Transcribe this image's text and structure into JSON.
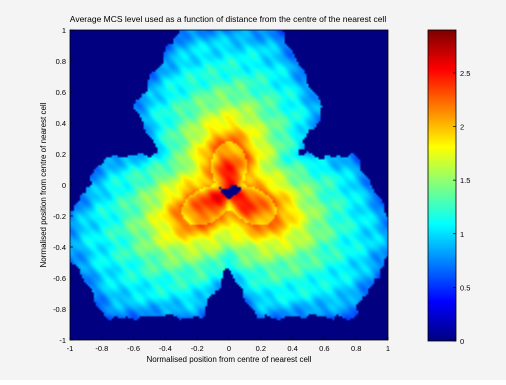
{
  "chart_data": {
    "type": "heatmap",
    "title": "Average MCS level used as a function of distance from the centre of the nearest cell",
    "xlabel": "Normalised position from centre of nearest cell",
    "ylabel": "Normalised position from centre of nearest cell",
    "xlim": [
      -1,
      1
    ],
    "ylim": [
      -1,
      1
    ],
    "x_ticks": [
      "-1",
      "-0.8",
      "-0.6",
      "-0.4",
      "-0.2",
      "0",
      "0.2",
      "0.4",
      "0.6",
      "0.8",
      "1"
    ],
    "y_ticks": [
      "1",
      "0.8",
      "0.6",
      "0.4",
      "0.2",
      "0",
      "-0.2",
      "-0.4",
      "-0.6",
      "-0.8",
      "-1"
    ],
    "colorbar": {
      "range": [
        0,
        2.9
      ],
      "ticks": [
        "2.5",
        "2",
        "1.5",
        "1",
        "0.5",
        "0"
      ],
      "colormap": "jet"
    },
    "grid": false,
    "description_model": {
      "background_value": 0,
      "coverage_region": "three overlapping hexagon-like lobes (clover) centered near (0, -0.05) with lobes toward up, lower-left, lower-right",
      "high_center_value": 2.8
    }
  }
}
